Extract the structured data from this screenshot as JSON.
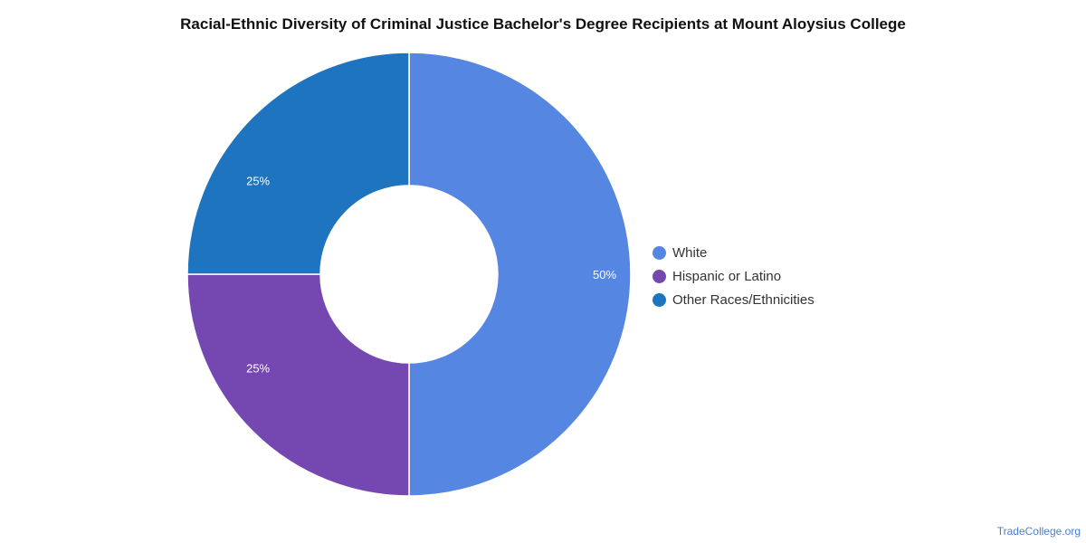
{
  "chart_data": {
    "type": "pie",
    "title": "Racial-Ethnic Diversity of Criminal Justice Bachelor's Degree Recipients at Mount Aloysius College",
    "categories": [
      "White",
      "Hispanic or Latino",
      "Other Races/Ethnicities"
    ],
    "values": [
      50,
      25,
      25
    ],
    "value_labels": [
      "50%",
      "25%",
      "25%"
    ],
    "colors": [
      "#5486e2",
      "#7548b1",
      "#1e74be"
    ],
    "donut": true,
    "legend_position": "right"
  },
  "footer": {
    "credit": "TradeCollege.org"
  }
}
